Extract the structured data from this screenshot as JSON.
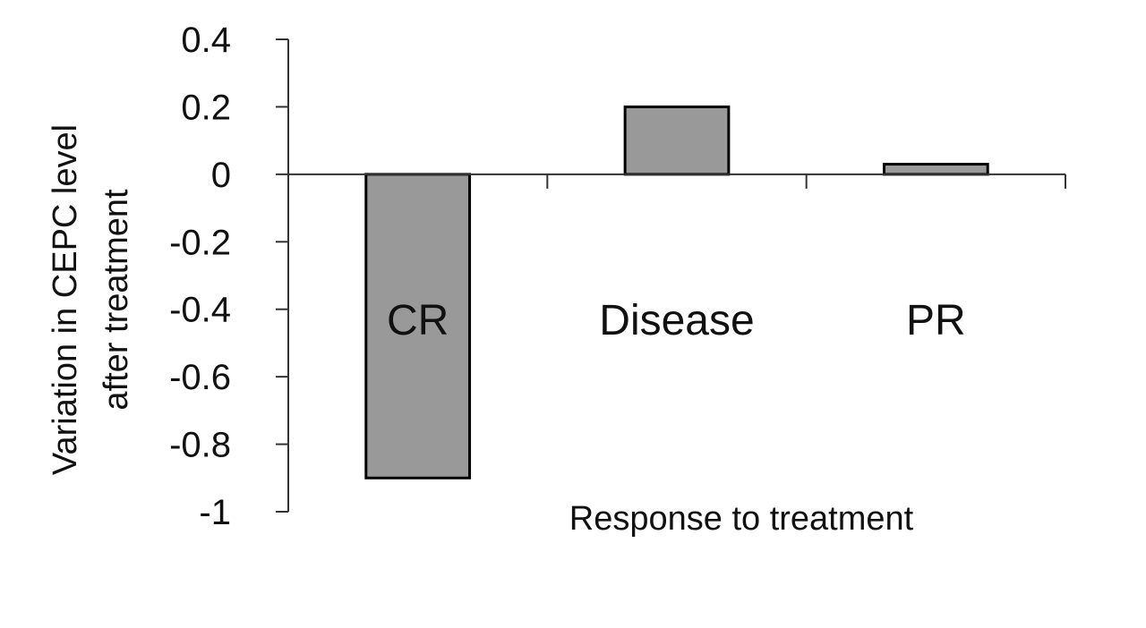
{
  "chart_data": {
    "type": "bar",
    "categories": [
      "CR",
      "Disease",
      "PR"
    ],
    "values": [
      -0.9,
      0.2,
      0.03
    ],
    "title": "",
    "xlabel": "Response to treatment",
    "ylabel_lines": [
      "Variation in CEPC level",
      "after treatment"
    ],
    "ylim": [
      -1,
      0.4
    ],
    "yticks": [
      "0.4",
      "0.2",
      "0",
      "-0.2",
      "-0.4",
      "-0.6",
      "-0.8",
      "-1"
    ],
    "bar_color": "#999999",
    "grid": false
  }
}
